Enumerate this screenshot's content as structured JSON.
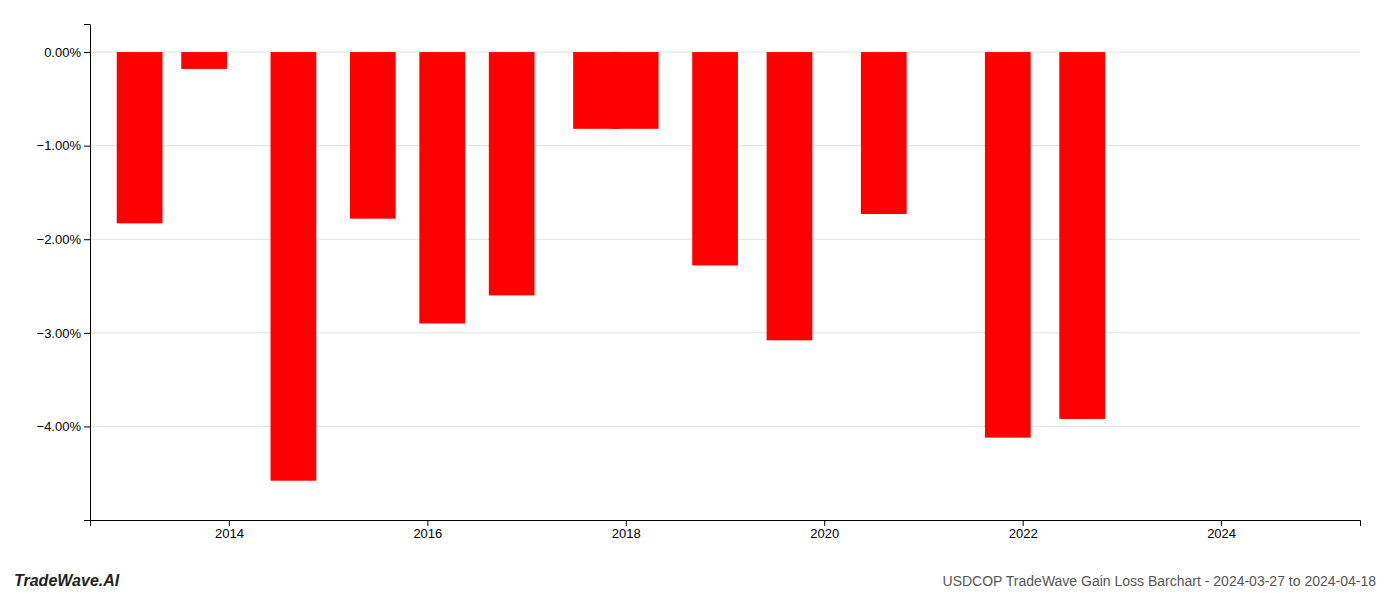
{
  "chart_data": {
    "type": "bar",
    "title": "USDCOP TradeWave Gain Loss Barchart - 2024-03-27 to 2024-04-18",
    "annotations": [
      "TradeWave.AI"
    ],
    "x": [
      2013.1,
      2013.75,
      2014.65,
      2015.45,
      2016.15,
      2016.85,
      2017.7,
      2018.1,
      2018.9,
      2019.65,
      2020.6,
      2021.85,
      2022.6
    ],
    "values": [
      -1.83,
      -0.18,
      -4.58,
      -1.78,
      -2.9,
      -2.6,
      -0.82,
      -0.82,
      -2.28,
      -3.08,
      -1.73,
      -4.12,
      -3.92
    ],
    "color": "#ff0000",
    "xlim": [
      2012.6,
      2025.4
    ],
    "xticks": [
      2014,
      2016,
      2018,
      2020,
      2022,
      2024
    ],
    "ylim": [
      -5.0,
      0.3
    ],
    "yticks": [
      {
        "value": 0.0,
        "label": "0.00%"
      },
      {
        "value": -1.0,
        "label": "−1.00%"
      },
      {
        "value": -2.0,
        "label": "−2.00%"
      },
      {
        "value": -3.0,
        "label": "−3.00%"
      },
      {
        "value": -4.0,
        "label": "−4.00%"
      }
    ],
    "grid": true
  }
}
